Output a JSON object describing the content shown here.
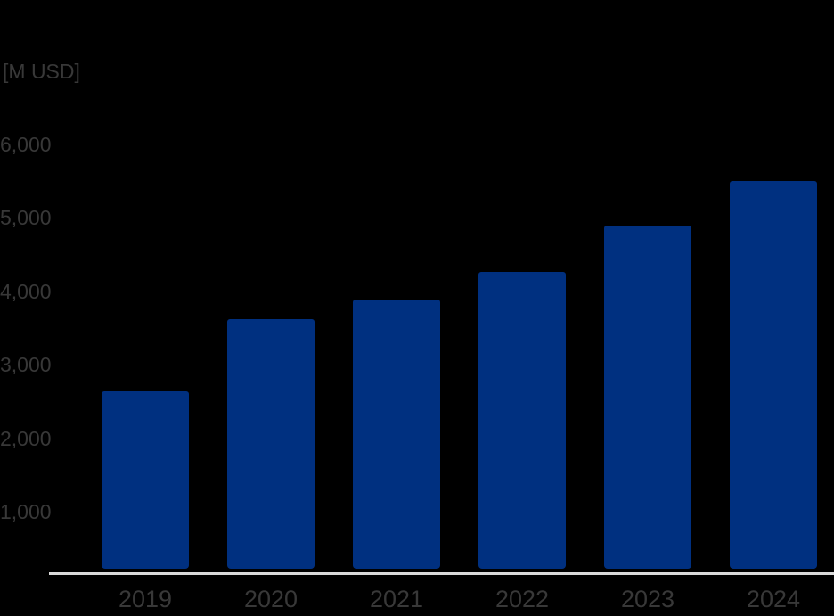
{
  "chart_data": {
    "type": "bar",
    "title": "",
    "ylabel": "[M USD]",
    "xlabel": "",
    "categories": [
      "2019",
      "2020",
      "2021",
      "2022",
      "2023",
      "2024"
    ],
    "values": [
      2640,
      3620,
      3885,
      4260,
      4890,
      5500
    ],
    "ylim": [
      0,
      6000
    ],
    "yticks": [
      1000,
      2000,
      3000,
      4000,
      5000,
      6000
    ],
    "ytick_labels": [
      "1,000",
      "2,000",
      "3,000",
      "4,000",
      "5,000",
      "6,000"
    ],
    "grid": false,
    "legend": false,
    "colors": {
      "bar": "#003080",
      "background": "#000000",
      "text": "#383838",
      "axis_line": "#d9d9d9"
    }
  }
}
